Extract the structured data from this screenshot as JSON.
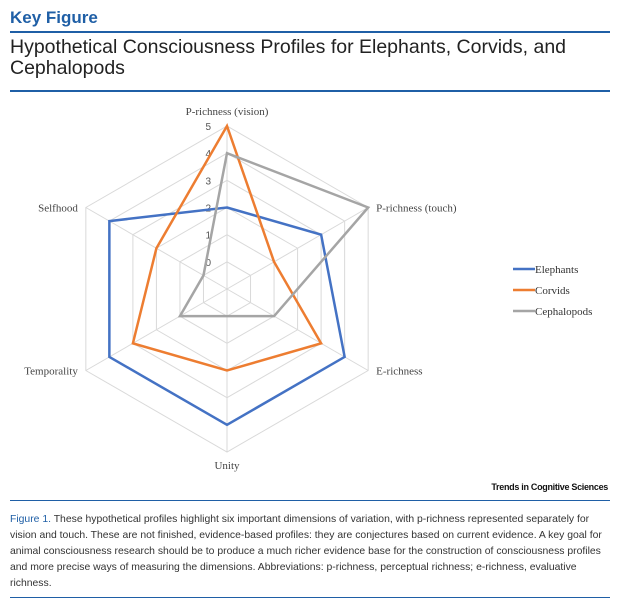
{
  "header": {
    "key_figure": "Key Figure",
    "title": "Hypothetical Consciousness Profiles for Elephants, Corvids, and Cephalopods"
  },
  "chart_data": {
    "type": "radar",
    "axes": [
      "P-richness (vision)",
      "P-richness (touch)",
      "E-richness",
      "Unity",
      "Temporality",
      "Selfhood"
    ],
    "ticks": [
      "0",
      "1",
      "2",
      "3",
      "4",
      "5"
    ],
    "range": [
      -1,
      5
    ],
    "grid": true,
    "legend_position": "right",
    "series": [
      {
        "name": "Elephants",
        "color": "#4472c4",
        "values": [
          2,
          3,
          4,
          4,
          4,
          4
        ]
      },
      {
        "name": "Corvids",
        "color": "#ed7d31",
        "values": [
          5,
          1,
          3,
          2,
          3,
          2
        ]
      },
      {
        "name": "Cephalopods",
        "color": "#a5a5a5",
        "values": [
          4,
          5,
          1,
          0,
          1,
          0
        ]
      }
    ]
  },
  "credit": "Trends in Cognitive Sciences",
  "caption": {
    "label": "Figure 1.",
    "text": " These hypothetical profiles highlight six important dimensions of variation, with p-richness represented separately for vision and touch. These are not finished, evidence-based profiles: they are conjectures based on current evidence. A key goal for animal consciousness research should be to produce a much richer evidence base for the construction of consciousness profiles and more precise ways of measuring the dimensions. Abbreviations: p-richness, perceptual richness; e-richness, evaluative richness."
  }
}
